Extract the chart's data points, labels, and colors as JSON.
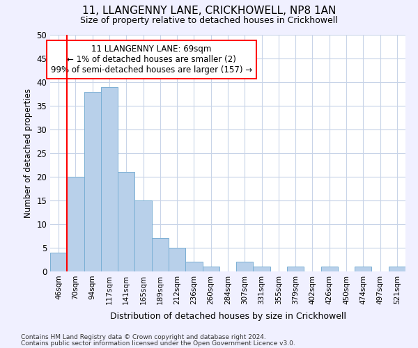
{
  "title": "11, LLANGENNY LANE, CRICKHOWELL, NP8 1AN",
  "subtitle": "Size of property relative to detached houses in Crickhowell",
  "xlabel": "Distribution of detached houses by size in Crickhowell",
  "ylabel": "Number of detached properties",
  "categories": [
    "46sqm",
    "70sqm",
    "94sqm",
    "117sqm",
    "141sqm",
    "165sqm",
    "189sqm",
    "212sqm",
    "236sqm",
    "260sqm",
    "284sqm",
    "307sqm",
    "331sqm",
    "355sqm",
    "379sqm",
    "402sqm",
    "426sqm",
    "450sqm",
    "474sqm",
    "497sqm",
    "521sqm"
  ],
  "values": [
    4,
    20,
    38,
    39,
    21,
    15,
    7,
    5,
    2,
    1,
    0,
    2,
    1,
    0,
    1,
    0,
    1,
    0,
    1,
    0,
    1
  ],
  "bar_color": "#b8d0ea",
  "bar_edge_color": "#7aafd4",
  "ylim": [
    0,
    50
  ],
  "yticks": [
    0,
    5,
    10,
    15,
    20,
    25,
    30,
    35,
    40,
    45,
    50
  ],
  "redline_index": 1,
  "annotation_title": "11 LLANGENNY LANE: 69sqm",
  "annotation_line1": "← 1% of detached houses are smaller (2)",
  "annotation_line2": "99% of semi-detached houses are larger (157) →",
  "footer1": "Contains HM Land Registry data © Crown copyright and database right 2024.",
  "footer2": "Contains public sector information licensed under the Open Government Licence v3.0.",
  "bg_color": "#f0f0ff",
  "plot_bg_color": "#ffffff",
  "grid_color": "#c8d4e8"
}
